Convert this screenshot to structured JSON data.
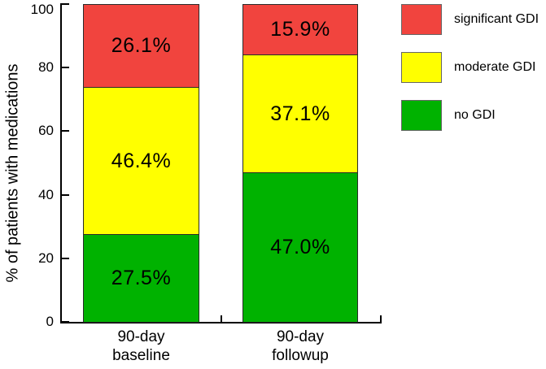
{
  "chart_data": {
    "type": "bar",
    "subtype": "stacked",
    "title": "",
    "ylabel": "% of patients with medications",
    "xlabel": "",
    "ylim": [
      0,
      100
    ],
    "y_ticks": [
      0,
      20,
      40,
      60,
      80,
      100
    ],
    "grid": false,
    "categories": [
      {
        "lines": [
          "90-day",
          "baseline"
        ]
      },
      {
        "lines": [
          "90-day",
          "followup"
        ]
      }
    ],
    "series": [
      {
        "name": "no GDI",
        "color": "#00b200",
        "values": [
          27.5,
          47.0
        ],
        "labels": [
          "27.5%",
          "47.0%"
        ]
      },
      {
        "name": "moderate GDI",
        "color": "#ffff00",
        "values": [
          46.4,
          37.1
        ],
        "labels": [
          "46.4%",
          "37.1%"
        ]
      },
      {
        "name": "significant GDI",
        "color": "#f1443e",
        "values": [
          26.1,
          15.9
        ],
        "labels": [
          "26.1%",
          "15.9%"
        ]
      }
    ],
    "legend": {
      "position": "top-right",
      "entries": [
        {
          "label": "significant GDI",
          "color": "#f1443e"
        },
        {
          "label": "moderate GDI",
          "color": "#ffff00"
        },
        {
          "label": "no GDI",
          "color": "#00b200"
        }
      ]
    }
  }
}
